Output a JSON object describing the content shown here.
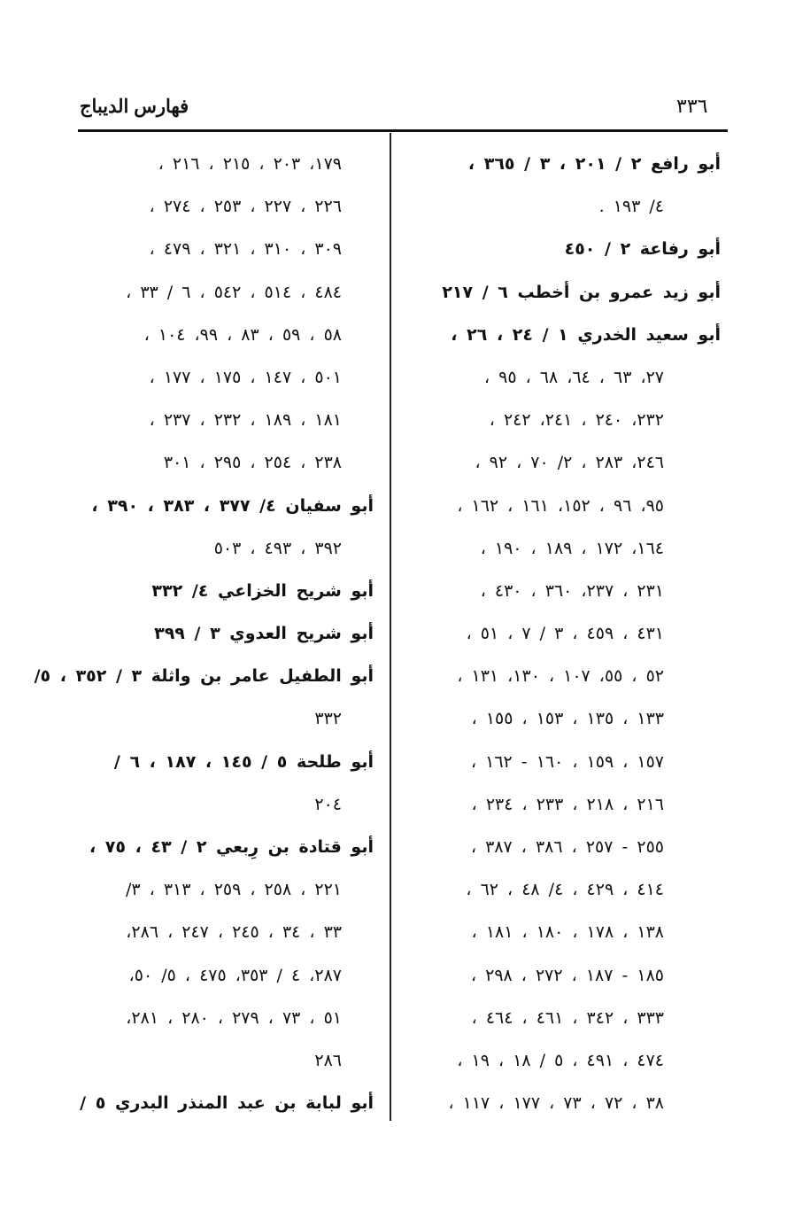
{
  "header": {
    "running_title": "فهارس الديباج",
    "page_number": "٣٣٦"
  },
  "right_column": [
    "أبو رافع ٢ / ٢٠١ ، ٣ / ٣٦٥ ،",
    "٤/ ١٩٣ .",
    "أبو رفاعة ٢ / ٤٥٠",
    "أبو زيد عمرو بن أخطب ٦ / ٢١٧",
    "أبو سعيد الخدري ١ / ٢٤ ، ٢٦ ،",
    "٢٧، ٦٣ ، ٦٤، ٦٨ ، ٩٥ ،",
    "٢٣٢، ٢٤٠ ، ٢٤١، ٢٤٢ ،",
    "٢٤٦، ٢٨٣ ، ٢/ ٧٠ ، ٩٢ ،",
    "٩٥، ٩٦ ، ١٥٢، ١٦١ ، ١٦٢ ،",
    "١٦٤، ١٧٢ ، ١٨٩ ، ١٩٠ ،",
    "٢٣١ ، ٢٣٧، ٣٦٠ ، ٤٣٠ ،",
    "٤٣١ ، ٤٥٩ ، ٣ / ٧ ، ٥١ ،",
    "٥٢ ، ٥٥، ١٠٧ ، ١٣٠، ١٣١ ،",
    "١٣٣ ، ١٣٥ ، ١٥٣ ، ١٥٥ ،",
    "١٥٧ ، ١٥٩ ، ١٦٠ - ١٦٢ ،",
    "٢١٦ ، ٢١٨ ، ٢٣٣ ، ٢٣٤ ،",
    "٢٥٥ - ٢٥٧ ، ٣٨٦ ، ٣٨٧ ،",
    "٤١٤ ، ٤٢٩ ، ٤/ ٤٨ ، ٦٢ ،",
    "١٣٨ ، ١٧٨ ، ١٨٠ ، ١٨١ ،",
    "١٨٥ - ١٨٧ ، ٢٧٢ ، ٢٩٨ ،",
    "٣٣٣ ، ٣٤٢ ، ٤٦١ ، ٤٦٤ ،",
    "٤٧٤ ، ٤٩١ ، ٥ / ١٨ ، ١٩ ،",
    "٣٨ ، ٧٢ ، ٧٣ ، ١٧٧ ، ١١٧ ،"
  ],
  "left_column": [
    "١٧٩، ٢٠٣ ، ٢١٥ ، ٢١٦ ،",
    "٢٢٦ ، ٢٢٧ ، ٢٥٣ ، ٢٧٤ ،",
    "٣٠٩ ، ٣١٠ ، ٣٢١ ، ٤٧٩ ،",
    "٤٨٤ ، ٥١٤ ، ٥٤٢ ، ٦ / ٣٣ ،",
    "٥٨ ، ٥٩ ، ٨٣ ، ٩٩، ١٠٤ ،",
    "٥٠١ ، ١٤٧ ، ١٧٥ ، ١٧٧ ،",
    "١٨١ ، ١٨٩ ، ٢٣٢ ، ٢٣٧ ،",
    "٢٣٨ ، ٢٥٤ ، ٢٩٥ ، ٣٠١",
    "أبو سفيان ٤/ ٣٧٧ ، ٣٨٣ ، ٣٩٠ ،",
    "٣٩٢ ، ٤٩٣ ، ٥٠٣",
    "أبو شريح الخزاعي ٤/ ٣٣٢",
    "أبو شريح العدوي ٣ / ٣٩٩",
    "أبو الطفيل عامر بن واثلة ٣ / ٣٥٢ ، ٥/",
    "٣٣٢",
    "أبو طلحة ٥ / ١٤٥ ، ١٨٧ ، ٦ /",
    "٢٠٤",
    "أبو قتادة بن رِبعي ٢ / ٤٣ ، ٧٥ ،",
    "٢٢١ ، ٢٥٨ ، ٢٥٩ ، ٣١٣ ، ٣/",
    "٣٣ ، ٣٤ ، ٢٤٥ ، ٢٤٧ ، ٢٨٦،",
    "٢٨٧، ٤ / ٣٥٣، ٤٧٥ ، ٥/ ٥٠،",
    "٥١ ، ٧٣ ، ٢٧٩ ، ٢٨٠ ، ٢٨١،",
    "٢٨٦",
    "أبو لبابة بن عبد المنذر البدري ٥ /"
  ]
}
